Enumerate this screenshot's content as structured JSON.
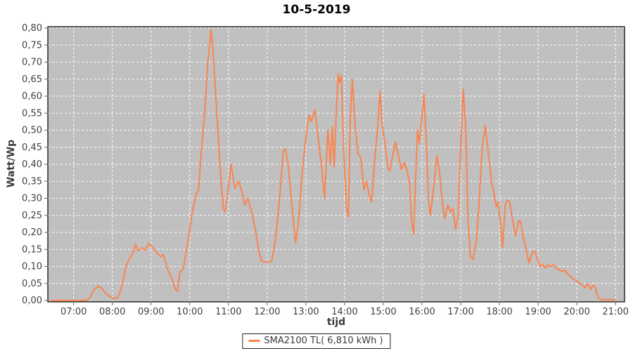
{
  "title": "10-5-2019",
  "legend": {
    "label": "SMA2100 TL( 6,810 kWh )"
  },
  "colors": {
    "series_orange": "#fa8450",
    "plot_background": "#c0c0c0",
    "gridline": "#ffffff",
    "plot_border": "#000000",
    "tick_text": "#3f3f3f",
    "tick_mark": "#666666"
  },
  "chart_data": {
    "type": "line",
    "title": "10-5-2019",
    "xlabel": "tijd",
    "ylabel": "Watt/Wp",
    "grid": "white dashed on gray plot background",
    "legend_position": "bottom-center",
    "ylim": [
      0,
      0.8
    ],
    "y_tick_step": 0.05,
    "y_tick_labels": [
      "0,00",
      "0,05",
      "0,10",
      "0,15",
      "0,20",
      "0,25",
      "0,30",
      "0,35",
      "0,40",
      "0,45",
      "0,50",
      "0,55",
      "0,60",
      "0,65",
      "0,70",
      "0,75",
      "0,80"
    ],
    "x_tick_labels": [
      "07:00",
      "08:00",
      "09:00",
      "10:00",
      "11:00",
      "12:00",
      "13:00",
      "14:00",
      "15:00",
      "16:00",
      "17:00",
      "18:00",
      "19:00",
      "20:00",
      "21:00"
    ],
    "x_tick_minutes": [
      420,
      480,
      540,
      600,
      660,
      720,
      780,
      840,
      900,
      960,
      1020,
      1080,
      1140,
      1200,
      1260
    ],
    "xlim_minutes": [
      380,
      1274
    ],
    "series": [
      {
        "name": "SMA2100 TL( 6,810 kWh )",
        "color": "#fa8450",
        "points_minutes_value": [
          [
            385,
            0.0
          ],
          [
            420,
            0.0
          ],
          [
            440,
            0.0
          ],
          [
            446,
            0.01
          ],
          [
            451,
            0.03
          ],
          [
            458,
            0.042
          ],
          [
            464,
            0.035
          ],
          [
            470,
            0.02
          ],
          [
            476,
            0.012
          ],
          [
            482,
            0.005
          ],
          [
            488,
            0.008
          ],
          [
            493,
            0.03
          ],
          [
            497,
            0.06
          ],
          [
            501,
            0.1
          ],
          [
            506,
            0.12
          ],
          [
            511,
            0.135
          ],
          [
            516,
            0.165
          ],
          [
            520,
            0.145
          ],
          [
            526,
            0.155
          ],
          [
            531,
            0.148
          ],
          [
            537,
            0.168
          ],
          [
            543,
            0.155
          ],
          [
            549,
            0.14
          ],
          [
            555,
            0.128
          ],
          [
            559,
            0.135
          ],
          [
            566,
            0.09
          ],
          [
            572,
            0.065
          ],
          [
            578,
            0.032
          ],
          [
            581,
            0.028
          ],
          [
            585,
            0.085
          ],
          [
            590,
            0.092
          ],
          [
            595,
            0.15
          ],
          [
            600,
            0.21
          ],
          [
            605,
            0.27
          ],
          [
            610,
            0.31
          ],
          [
            614,
            0.33
          ],
          [
            618,
            0.44
          ],
          [
            623,
            0.55
          ],
          [
            628,
            0.7
          ],
          [
            633,
            0.795
          ],
          [
            636,
            0.74
          ],
          [
            640,
            0.61
          ],
          [
            643,
            0.52
          ],
          [
            646,
            0.42
          ],
          [
            649,
            0.34
          ],
          [
            652,
            0.27
          ],
          [
            655,
            0.26
          ],
          [
            660,
            0.33
          ],
          [
            664,
            0.4
          ],
          [
            670,
            0.33
          ],
          [
            676,
            0.35
          ],
          [
            682,
            0.31
          ],
          [
            685,
            0.28
          ],
          [
            690,
            0.3
          ],
          [
            696,
            0.26
          ],
          [
            702,
            0.205
          ],
          [
            708,
            0.135
          ],
          [
            712,
            0.115
          ],
          [
            720,
            0.112
          ],
          [
            727,
            0.115
          ],
          [
            733,
            0.18
          ],
          [
            739,
            0.295
          ],
          [
            745,
            0.44
          ],
          [
            748,
            0.445
          ],
          [
            752,
            0.41
          ],
          [
            758,
            0.285
          ],
          [
            764,
            0.17
          ],
          [
            768,
            0.22
          ],
          [
            775,
            0.39
          ],
          [
            780,
            0.48
          ],
          [
            785,
            0.545
          ],
          [
            789,
            0.525
          ],
          [
            794,
            0.56
          ],
          [
            799,
            0.48
          ],
          [
            804,
            0.4
          ],
          [
            809,
            0.3
          ],
          [
            814,
            0.5
          ],
          [
            818,
            0.4
          ],
          [
            821,
            0.51
          ],
          [
            824,
            0.39
          ],
          [
            827,
            0.55
          ],
          [
            830,
            0.665
          ],
          [
            832,
            0.64
          ],
          [
            835,
            0.66
          ],
          [
            839,
            0.43
          ],
          [
            843,
            0.27
          ],
          [
            846,
            0.245
          ],
          [
            849,
            0.55
          ],
          [
            852,
            0.65
          ],
          [
            856,
            0.52
          ],
          [
            861,
            0.43
          ],
          [
            865,
            0.42
          ],
          [
            870,
            0.325
          ],
          [
            874,
            0.35
          ],
          [
            878,
            0.31
          ],
          [
            882,
            0.29
          ],
          [
            887,
            0.42
          ],
          [
            891,
            0.5
          ],
          [
            895,
            0.615
          ],
          [
            898,
            0.52
          ],
          [
            902,
            0.47
          ],
          [
            907,
            0.39
          ],
          [
            910,
            0.38
          ],
          [
            915,
            0.43
          ],
          [
            919,
            0.465
          ],
          [
            924,
            0.42
          ],
          [
            928,
            0.385
          ],
          [
            933,
            0.405
          ],
          [
            937,
            0.38
          ],
          [
            941,
            0.34
          ],
          [
            944,
            0.23
          ],
          [
            947,
            0.195
          ],
          [
            951,
            0.4
          ],
          [
            953,
            0.5
          ],
          [
            956,
            0.46
          ],
          [
            959,
            0.52
          ],
          [
            963,
            0.605
          ],
          [
            967,
            0.46
          ],
          [
            970,
            0.3
          ],
          [
            973,
            0.25
          ],
          [
            978,
            0.33
          ],
          [
            983,
            0.425
          ],
          [
            987,
            0.38
          ],
          [
            991,
            0.3
          ],
          [
            995,
            0.24
          ],
          [
            1000,
            0.28
          ],
          [
            1004,
            0.26
          ],
          [
            1008,
            0.27
          ],
          [
            1012,
            0.21
          ],
          [
            1016,
            0.25
          ],
          [
            1020,
            0.45
          ],
          [
            1024,
            0.62
          ],
          [
            1028,
            0.5
          ],
          [
            1031,
            0.25
          ],
          [
            1035,
            0.13
          ],
          [
            1039,
            0.12
          ],
          [
            1044,
            0.17
          ],
          [
            1048,
            0.27
          ],
          [
            1053,
            0.44
          ],
          [
            1058,
            0.515
          ],
          [
            1063,
            0.43
          ],
          [
            1068,
            0.345
          ],
          [
            1071,
            0.32
          ],
          [
            1075,
            0.275
          ],
          [
            1078,
            0.29
          ],
          [
            1082,
            0.22
          ],
          [
            1085,
            0.155
          ],
          [
            1089,
            0.28
          ],
          [
            1092,
            0.295
          ],
          [
            1096,
            0.29
          ],
          [
            1101,
            0.23
          ],
          [
            1105,
            0.19
          ],
          [
            1110,
            0.235
          ],
          [
            1113,
            0.23
          ],
          [
            1118,
            0.175
          ],
          [
            1122,
            0.145
          ],
          [
            1126,
            0.11
          ],
          [
            1131,
            0.14
          ],
          [
            1135,
            0.145
          ],
          [
            1139,
            0.12
          ],
          [
            1143,
            0.1
          ],
          [
            1147,
            0.105
          ],
          [
            1151,
            0.095
          ],
          [
            1155,
            0.105
          ],
          [
            1159,
            0.1
          ],
          [
            1164,
            0.105
          ],
          [
            1168,
            0.095
          ],
          [
            1173,
            0.09
          ],
          [
            1177,
            0.085
          ],
          [
            1181,
            0.09
          ],
          [
            1185,
            0.08
          ],
          [
            1190,
            0.07
          ],
          [
            1195,
            0.062
          ],
          [
            1200,
            0.058
          ],
          [
            1205,
            0.05
          ],
          [
            1209,
            0.045
          ],
          [
            1213,
            0.037
          ],
          [
            1217,
            0.05
          ],
          [
            1221,
            0.032
          ],
          [
            1225,
            0.045
          ],
          [
            1228,
            0.04
          ],
          [
            1231,
            0.02
          ],
          [
            1234,
            0.005
          ],
          [
            1238,
            0.002
          ],
          [
            1245,
            0.002
          ],
          [
            1260,
            0.002
          ]
        ]
      }
    ]
  }
}
